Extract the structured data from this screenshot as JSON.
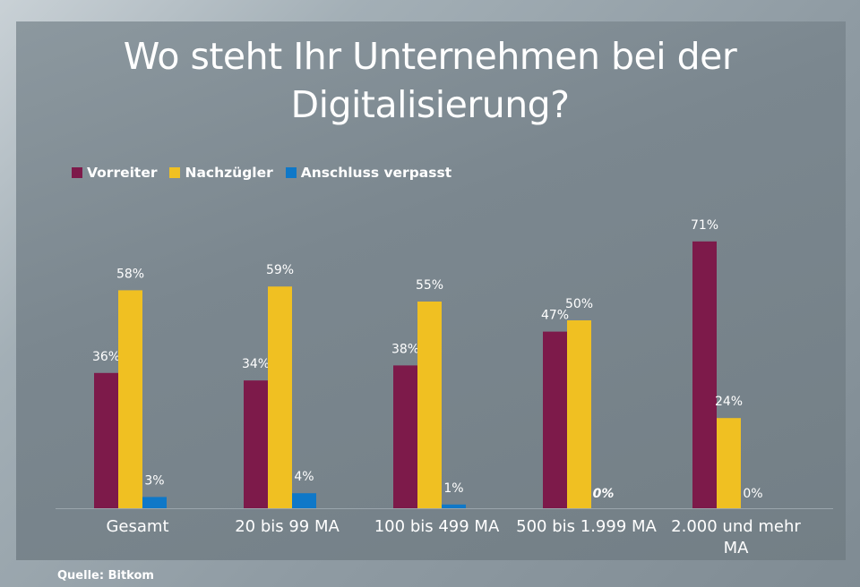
{
  "title_line1": "Wo steht Ihr Unternehmen bei der",
  "title_line2": "Digitalisierung?",
  "source": "Quelle:  Bitkom",
  "colors": {
    "Vorreiter": "#7d1a4a",
    "Nachzügler": "#f0c022",
    "Anschluss verpasst": "#0f78c8"
  },
  "chart_data": {
    "type": "bar",
    "title": "Wo steht Ihr Unternehmen bei der Digitalisierung?",
    "categories": [
      "Gesamt",
      "20 bis 99 MA",
      "100 bis 499 MA",
      "500 bis 1.999 MA",
      "2.000 und mehr MA"
    ],
    "category_lines": [
      [
        "Gesamt"
      ],
      [
        "20 bis 99 MA"
      ],
      [
        "100 bis 499 MA"
      ],
      [
        "500 bis 1.999 MA"
      ],
      [
        "2.000 und mehr",
        "MA"
      ]
    ],
    "series": [
      {
        "name": "Vorreiter",
        "values": [
          36,
          34,
          38,
          47,
          71
        ],
        "labels": [
          "36%",
          "34%",
          "38%",
          "47%",
          "71%"
        ]
      },
      {
        "name": "Nachzügler",
        "values": [
          58,
          59,
          55,
          50,
          24
        ],
        "labels": [
          "58%",
          "59%",
          "55%",
          "50%",
          "24%"
        ]
      },
      {
        "name": "Anschluss verpasst",
        "values": [
          3,
          4,
          1,
          0,
          0
        ],
        "labels": [
          "3%",
          "4%",
          "1%",
          "0%",
          "0%"
        ]
      }
    ],
    "ylim": [
      0,
      75
    ],
    "xlabel": "",
    "ylabel": "",
    "legend_position": "top-left",
    "grid": false
  }
}
